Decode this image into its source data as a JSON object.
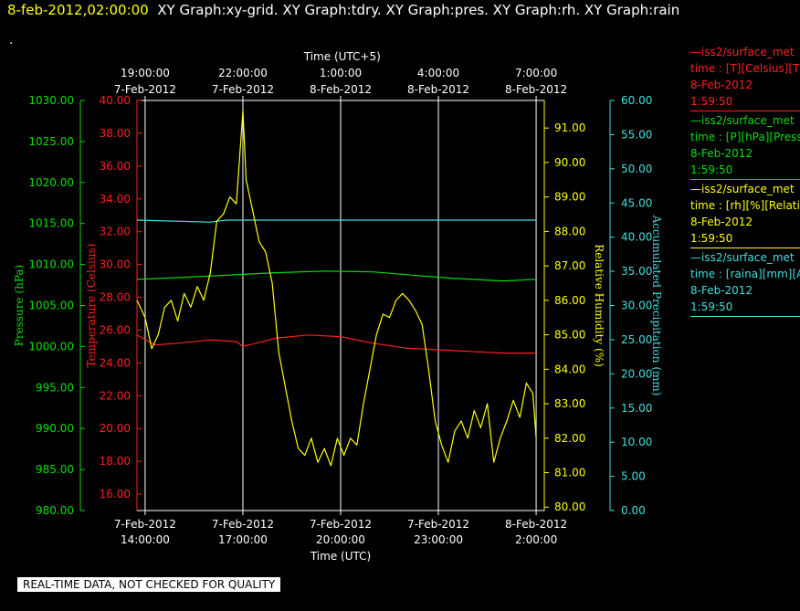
{
  "header": {
    "date": "8-feb-2012,02:00:00",
    "titles": "XY Graph:xy-grid.  XY Graph:tdry.  XY Graph:pres.  XY Graph:rh.  XY Graph:rain",
    "dot": "."
  },
  "legend": [
    {
      "name": "—iss2/surface_met",
      "line1": "time : [T][Celsius][T",
      "line2": "8-Feb-2012",
      "line3": "1:59:50",
      "color": "#ff2020"
    },
    {
      "name": "—iss2/surface_met",
      "line1": "time : [P][hPa][Press",
      "line2": "8-Feb-2012",
      "line3": "1:59:50",
      "color": "#00e000"
    },
    {
      "name": "—iss2/surface_met",
      "line1": "time : [rh][%][Relati",
      "line2": "8-Feb-2012",
      "line3": "1:59:50",
      "color": "#ffff00"
    },
    {
      "name": "—iss2/surface_met",
      "line1": "time : [raina][mm][A",
      "line2": "8-Feb-2012",
      "line3": "1:59:50",
      "color": "#40e0e0"
    }
  ],
  "footer": "REAL-TIME DATA, NOT CHECKED FOR QUALITY",
  "chart_data": {
    "type": "line",
    "x_bottom_title": "Time (UTC)",
    "x_top_title": "Time (UTC+5)",
    "x_range_hours": [
      13.75,
      26.25
    ],
    "x_bottom_ticks": [
      {
        "h": 14,
        "date": "7-Feb-2012",
        "time": "14:00:00"
      },
      {
        "h": 17,
        "date": "7-Feb-2012",
        "time": "17:00:00"
      },
      {
        "h": 20,
        "date": "7-Feb-2012",
        "time": "20:00:00"
      },
      {
        "h": 23,
        "date": "7-Feb-2012",
        "time": "23:00:00"
      },
      {
        "h": 26,
        "date": "8-Feb-2012",
        "time": "2:00:00"
      }
    ],
    "x_top_ticks": [
      {
        "h": 14,
        "time": "19:00:00",
        "date": "7-Feb-2012"
      },
      {
        "h": 17,
        "time": "22:00:00",
        "date": "7-Feb-2012"
      },
      {
        "h": 20,
        "time": "1:00:00",
        "date": "8-Feb-2012"
      },
      {
        "h": 23,
        "time": "4:00:00",
        "date": "8-Feb-2012"
      },
      {
        "h": 26,
        "time": "7:00:00",
        "date": "8-Feb-2012"
      }
    ],
    "axes": {
      "pressure": {
        "label": "Pressure (hPa)",
        "range": [
          980,
          1030
        ],
        "ticks": [
          "980.00",
          "985.00",
          "990.00",
          "995.00",
          "1000.00",
          "1005.00",
          "1010.00",
          "1015.00",
          "1020.00",
          "1025.00",
          "1030.00"
        ],
        "color": "#00e000"
      },
      "temperature": {
        "label": "Temperature (Celsius)",
        "range": [
          15,
          40
        ],
        "ticks": [
          "16.00",
          "18.00",
          "20.00",
          "22.00",
          "24.00",
          "26.00",
          "28.00",
          "30.00",
          "32.00",
          "34.00",
          "36.00",
          "38.00",
          "40.00"
        ],
        "color": "#ff2020"
      },
      "humidity": {
        "label": "Relative Humidity (%)",
        "range": [
          79.9,
          91.8
        ],
        "ticks": [
          "80.00",
          "81.00",
          "82.00",
          "83.00",
          "84.00",
          "85.00",
          "86.00",
          "87.00",
          "88.00",
          "89.00",
          "90.00",
          "91.00"
        ],
        "color": "#ffff00"
      },
      "precip": {
        "label": "Accumulated Precipitation (mm)",
        "range": [
          0,
          60
        ],
        "ticks": [
          "0.00",
          "5.00",
          "10.00",
          "15.00",
          "20.00",
          "25.00",
          "30.00",
          "35.00",
          "40.00",
          "45.00",
          "50.00",
          "55.00",
          "60.00"
        ],
        "color": "#40e0e0"
      }
    },
    "series": [
      {
        "name": "rain",
        "axis": "precip",
        "color": "#40e0e0",
        "x": [
          13.75,
          16.0,
          16.5,
          26.0
        ],
        "y": [
          42.5,
          42.2,
          42.5,
          42.5
        ]
      },
      {
        "name": "pres",
        "axis": "pressure",
        "color": "#00e000",
        "x": [
          13.75,
          15.0,
          16.5,
          18.0,
          19.5,
          21.0,
          22.5,
          23.5,
          25.0,
          26.0
        ],
        "y": [
          1008.2,
          1008.4,
          1008.7,
          1009.0,
          1009.2,
          1009.1,
          1008.6,
          1008.3,
          1008.0,
          1008.2
        ]
      },
      {
        "name": "tdry",
        "axis": "temperature",
        "color": "#ff2020",
        "x": [
          13.75,
          14.3,
          15.0,
          16.0,
          16.8,
          17.0,
          18.0,
          19.0,
          20.0,
          21.0,
          22.0,
          23.0,
          24.0,
          25.0,
          26.0
        ],
        "y": [
          25.7,
          25.1,
          25.2,
          25.4,
          25.3,
          25.0,
          25.5,
          25.7,
          25.6,
          25.2,
          24.9,
          24.8,
          24.7,
          24.6,
          24.6
        ]
      },
      {
        "name": "rh",
        "axis": "humidity",
        "color": "#ffff00",
        "x": [
          13.75,
          14.0,
          14.2,
          14.4,
          14.6,
          14.8,
          15.0,
          15.2,
          15.4,
          15.6,
          15.8,
          16.0,
          16.2,
          16.4,
          16.6,
          16.8,
          17.0,
          17.1,
          17.3,
          17.5,
          17.7,
          17.9,
          18.1,
          18.3,
          18.5,
          18.7,
          18.9,
          19.1,
          19.3,
          19.5,
          19.7,
          19.9,
          20.1,
          20.3,
          20.5,
          20.7,
          20.9,
          21.1,
          21.3,
          21.5,
          21.7,
          21.9,
          22.1,
          22.3,
          22.5,
          22.7,
          22.9,
          23.1,
          23.3,
          23.5,
          23.7,
          23.9,
          24.1,
          24.3,
          24.5,
          24.7,
          24.9,
          25.1,
          25.3,
          25.5,
          25.7,
          25.9,
          26.0
        ],
        "y": [
          86.0,
          85.5,
          84.6,
          85.0,
          85.8,
          86.0,
          85.4,
          86.2,
          85.8,
          86.4,
          86.0,
          86.8,
          88.3,
          88.5,
          89.0,
          88.8,
          91.5,
          89.5,
          88.6,
          87.7,
          87.4,
          86.5,
          84.5,
          83.5,
          82.5,
          81.7,
          81.5,
          82.0,
          81.3,
          81.7,
          81.2,
          82.0,
          81.5,
          82.0,
          81.8,
          83.0,
          84.0,
          85.0,
          85.6,
          85.5,
          86.0,
          86.2,
          86.0,
          85.7,
          85.3,
          84.0,
          82.5,
          81.8,
          81.3,
          82.2,
          82.5,
          82.0,
          82.8,
          82.3,
          83.0,
          81.3,
          82.0,
          82.5,
          83.1,
          82.6,
          83.6,
          83.3,
          82.0
        ]
      }
    ]
  }
}
